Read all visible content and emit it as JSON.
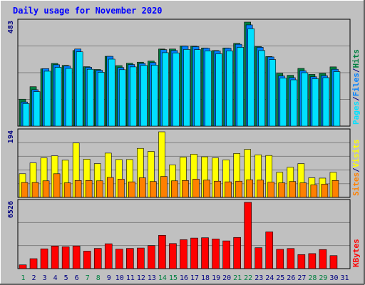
{
  "chart_data": [
    {
      "type": "bar",
      "title": "Daily usage for November 2020",
      "ylabel_parts": [
        "Pages",
        "/",
        "Files",
        "/",
        "Hits"
      ],
      "ymax_label": "483",
      "ylim": [
        0,
        483
      ],
      "series": [
        {
          "name": "Hits",
          "color": "#008040",
          "values": [
            125,
            183,
            266,
            291,
            282,
            351,
            276,
            263,
            324,
            281,
            292,
            297,
            302,
            358,
            358,
            372,
            371,
            363,
            351,
            363,
            384,
            483,
            369,
            323,
            245,
            236,
            268,
            240,
            245,
            275
          ]
        },
        {
          "name": "Files",
          "color": "#0080ff",
          "values": [
            112,
            169,
            267,
            285,
            279,
            358,
            273,
            259,
            324,
            272,
            286,
            291,
            295,
            355,
            351,
            371,
            369,
            362,
            349,
            362,
            380,
            470,
            366,
            321,
            233,
            225,
            257,
            229,
            234,
            264
          ]
        },
        {
          "name": "Pages",
          "color": "#00e0ff",
          "values": [
            105,
            160,
            255,
            273,
            268,
            345,
            264,
            250,
            311,
            262,
            275,
            282,
            283,
            341,
            340,
            356,
            355,
            349,
            336,
            349,
            366,
            452,
            351,
            309,
            223,
            215,
            248,
            220,
            225,
            253
          ]
        }
      ]
    },
    {
      "type": "bar",
      "ylabel_parts": [
        "Sites",
        "/",
        "Visits"
      ],
      "ymax_label": "194",
      "ylim": [
        0,
        194
      ],
      "series": [
        {
          "name": "Visits",
          "color": "#ffff00",
          "values": [
            70,
            102,
            117,
            123,
            110,
            161,
            113,
            100,
            131,
            112,
            112,
            145,
            136,
            194,
            96,
            119,
            128,
            120,
            117,
            111,
            130,
            142,
            126,
            124,
            74,
            89,
            100,
            58,
            57,
            74
          ]
        },
        {
          "name": "Sites",
          "color": "#ff8000",
          "values": [
            44,
            44,
            49,
            70,
            43,
            50,
            50,
            49,
            59,
            54,
            46,
            58,
            47,
            62,
            49,
            50,
            54,
            51,
            48,
            46,
            48,
            52,
            51,
            45,
            43,
            47,
            43,
            37,
            39,
            50
          ]
        }
      ]
    },
    {
      "type": "bar",
      "ylabel_parts": [
        "KBytes"
      ],
      "ymax_label": "6526",
      "ylim": [
        0,
        6526
      ],
      "series": [
        {
          "name": "KBytes",
          "color": "#ff0000",
          "values": [
            370,
            980,
            1950,
            2220,
            2150,
            2230,
            1720,
            1990,
            2450,
            1920,
            1990,
            2030,
            2270,
            3280,
            2470,
            2850,
            3010,
            3040,
            2920,
            2730,
            3070,
            6526,
            2060,
            3620,
            1900,
            1980,
            1380,
            1480,
            1880,
            1280
          ]
        }
      ]
    }
  ],
  "x_labels": [
    "1",
    "2",
    "3",
    "4",
    "5",
    "6",
    "7",
    "8",
    "9",
    "10",
    "11",
    "12",
    "13",
    "14",
    "15",
    "16",
    "17",
    "18",
    "19",
    "20",
    "21",
    "22",
    "23",
    "24",
    "25",
    "26",
    "27",
    "28",
    "29",
    "30",
    "31"
  ],
  "weekend_days": [
    1,
    7,
    8,
    14,
    15,
    21,
    22,
    28,
    29
  ],
  "colors": {
    "title": "#0000ff",
    "axis_text": "#000080",
    "weekend_text": "#008040",
    "plot_bg": "#c0c0c0",
    "frame_bg": "#c0c0c0",
    "grid": "#808080",
    "hits": "#008040",
    "files": "#0080ff",
    "pages": "#00e0ff",
    "visits": "#ffff00",
    "sites": "#ff8000",
    "kbytes": "#ff0000"
  }
}
